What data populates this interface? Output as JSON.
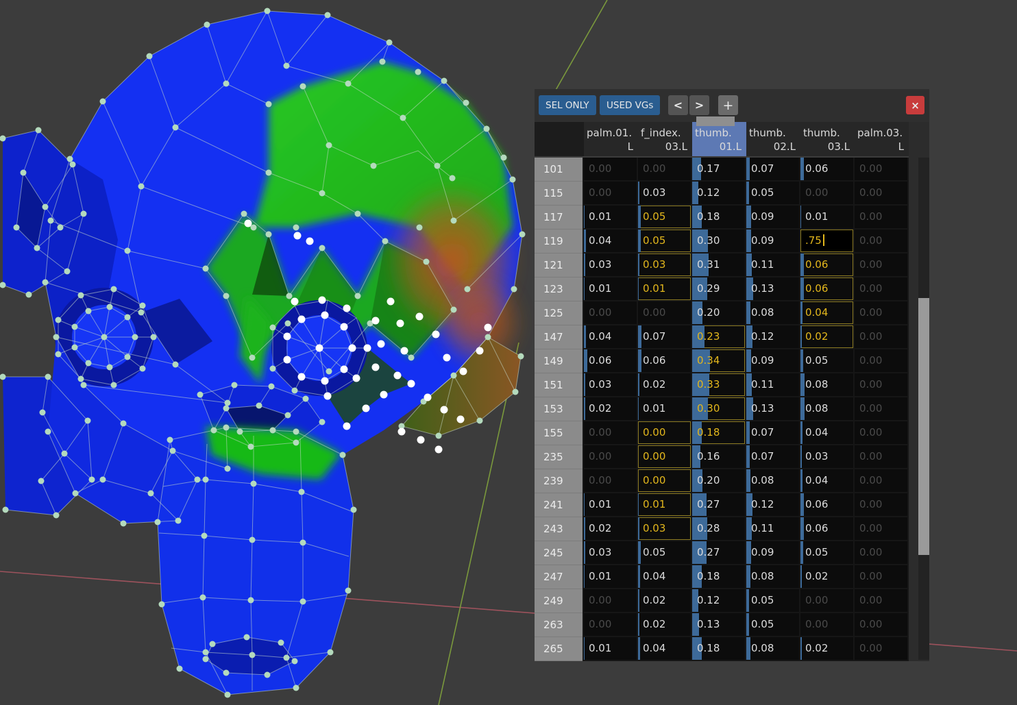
{
  "panel": {
    "toolbar": {
      "sel_only": "SEL ONLY",
      "used_vgs": "USED VGs",
      "prev": "<",
      "next": ">",
      "add": "+",
      "close": "×"
    },
    "columns": [
      {
        "l1": "palm.01.",
        "l2": "L",
        "selected": false
      },
      {
        "l1": "f_index.",
        "l2": "03.L",
        "selected": false
      },
      {
        "l1": "thumb.",
        "l2": "01.L",
        "selected": true
      },
      {
        "l1": "thumb.",
        "l2": "02.L",
        "selected": false
      },
      {
        "l1": "thumb.",
        "l2": "03.L",
        "selected": false
      },
      {
        "l1": "palm.03.",
        "l2": "L",
        "selected": false
      }
    ],
    "cell_states_legend": {
      "n": "normal",
      "d": "dim-zero",
      "y": "active-outline",
      "e": "editing"
    },
    "rows": [
      {
        "n": "101",
        "c": [
          [
            "0.00",
            "d"
          ],
          [
            "0.00",
            "d"
          ],
          [
            "0.17",
            "n"
          ],
          [
            "0.07",
            "n"
          ],
          [
            "0.06",
            "n"
          ],
          [
            "0.00",
            "d"
          ]
        ]
      },
      {
        "n": "115",
        "c": [
          [
            "0.00",
            "d"
          ],
          [
            "0.03",
            "n"
          ],
          [
            "0.12",
            "n"
          ],
          [
            "0.05",
            "n"
          ],
          [
            "0.00",
            "d"
          ],
          [
            "0.00",
            "d"
          ]
        ]
      },
      {
        "n": "117",
        "c": [
          [
            "0.01",
            "n"
          ],
          [
            "0.05",
            "y"
          ],
          [
            "0.18",
            "n"
          ],
          [
            "0.09",
            "n"
          ],
          [
            "0.01",
            "n"
          ],
          [
            "0.00",
            "d"
          ]
        ]
      },
      {
        "n": "119",
        "c": [
          [
            "0.04",
            "n"
          ],
          [
            "0.05",
            "y"
          ],
          [
            "0.30",
            "n"
          ],
          [
            "0.09",
            "n"
          ],
          [
            ".75",
            "e"
          ],
          [
            "0.00",
            "d"
          ]
        ]
      },
      {
        "n": "121",
        "c": [
          [
            "0.03",
            "n"
          ],
          [
            "0.03",
            "y"
          ],
          [
            "0.31",
            "n"
          ],
          [
            "0.11",
            "n"
          ],
          [
            "0.06",
            "y"
          ],
          [
            "0.00",
            "d"
          ]
        ]
      },
      {
        "n": "123",
        "c": [
          [
            "0.01",
            "n"
          ],
          [
            "0.01",
            "y"
          ],
          [
            "0.29",
            "n"
          ],
          [
            "0.13",
            "n"
          ],
          [
            "0.06",
            "y"
          ],
          [
            "0.00",
            "d"
          ]
        ]
      },
      {
        "n": "125",
        "c": [
          [
            "0.00",
            "d"
          ],
          [
            "0.00",
            "d"
          ],
          [
            "0.20",
            "n"
          ],
          [
            "0.08",
            "n"
          ],
          [
            "0.04",
            "y"
          ],
          [
            "0.00",
            "d"
          ]
        ]
      },
      {
        "n": "147",
        "c": [
          [
            "0.04",
            "n"
          ],
          [
            "0.07",
            "n"
          ],
          [
            "0.23",
            "y"
          ],
          [
            "0.12",
            "n"
          ],
          [
            "0.02",
            "y"
          ],
          [
            "0.00",
            "d"
          ]
        ]
      },
      {
        "n": "149",
        "c": [
          [
            "0.06",
            "n"
          ],
          [
            "0.06",
            "n"
          ],
          [
            "0.34",
            "y"
          ],
          [
            "0.09",
            "n"
          ],
          [
            "0.05",
            "n"
          ],
          [
            "0.00",
            "d"
          ]
        ]
      },
      {
        "n": "151",
        "c": [
          [
            "0.03",
            "n"
          ],
          [
            "0.02",
            "n"
          ],
          [
            "0.33",
            "y"
          ],
          [
            "0.11",
            "n"
          ],
          [
            "0.08",
            "n"
          ],
          [
            "0.00",
            "d"
          ]
        ]
      },
      {
        "n": "153",
        "c": [
          [
            "0.02",
            "n"
          ],
          [
            "0.01",
            "n"
          ],
          [
            "0.30",
            "y"
          ],
          [
            "0.13",
            "n"
          ],
          [
            "0.08",
            "n"
          ],
          [
            "0.00",
            "d"
          ]
        ]
      },
      {
        "n": "155",
        "c": [
          [
            "0.00",
            "d"
          ],
          [
            "0.00",
            "y"
          ],
          [
            "0.18",
            "y"
          ],
          [
            "0.07",
            "n"
          ],
          [
            "0.04",
            "n"
          ],
          [
            "0.00",
            "d"
          ]
        ]
      },
      {
        "n": "235",
        "c": [
          [
            "0.00",
            "d"
          ],
          [
            "0.00",
            "y"
          ],
          [
            "0.16",
            "n"
          ],
          [
            "0.07",
            "n"
          ],
          [
            "0.03",
            "n"
          ],
          [
            "0.00",
            "d"
          ]
        ]
      },
      {
        "n": "239",
        "c": [
          [
            "0.00",
            "d"
          ],
          [
            "0.00",
            "y"
          ],
          [
            "0.20",
            "n"
          ],
          [
            "0.08",
            "n"
          ],
          [
            "0.04",
            "n"
          ],
          [
            "0.00",
            "d"
          ]
        ]
      },
      {
        "n": "241",
        "c": [
          [
            "0.01",
            "n"
          ],
          [
            "0.01",
            "y"
          ],
          [
            "0.27",
            "n"
          ],
          [
            "0.12",
            "n"
          ],
          [
            "0.06",
            "n"
          ],
          [
            "0.00",
            "d"
          ]
        ]
      },
      {
        "n": "243",
        "c": [
          [
            "0.02",
            "n"
          ],
          [
            "0.03",
            "y"
          ],
          [
            "0.28",
            "n"
          ],
          [
            "0.11",
            "n"
          ],
          [
            "0.06",
            "n"
          ],
          [
            "0.00",
            "d"
          ]
        ]
      },
      {
        "n": "245",
        "c": [
          [
            "0.03",
            "n"
          ],
          [
            "0.05",
            "n"
          ],
          [
            "0.27",
            "n"
          ],
          [
            "0.09",
            "n"
          ],
          [
            "0.05",
            "n"
          ],
          [
            "0.00",
            "d"
          ]
        ]
      },
      {
        "n": "247",
        "c": [
          [
            "0.01",
            "n"
          ],
          [
            "0.04",
            "n"
          ],
          [
            "0.18",
            "n"
          ],
          [
            "0.08",
            "n"
          ],
          [
            "0.02",
            "n"
          ],
          [
            "0.00",
            "d"
          ]
        ]
      },
      {
        "n": "249",
        "c": [
          [
            "0.00",
            "d"
          ],
          [
            "0.02",
            "n"
          ],
          [
            "0.12",
            "n"
          ],
          [
            "0.05",
            "n"
          ],
          [
            "0.00",
            "d"
          ],
          [
            "0.00",
            "d"
          ]
        ]
      },
      {
        "n": "263",
        "c": [
          [
            "0.00",
            "d"
          ],
          [
            "0.02",
            "n"
          ],
          [
            "0.13",
            "n"
          ],
          [
            "0.05",
            "n"
          ],
          [
            "0.00",
            "d"
          ],
          [
            "0.00",
            "d"
          ]
        ]
      },
      {
        "n": "265",
        "c": [
          [
            "0.01",
            "n"
          ],
          [
            "0.04",
            "n"
          ],
          [
            "0.18",
            "n"
          ],
          [
            "0.08",
            "n"
          ],
          [
            "0.02",
            "n"
          ],
          [
            "0.00",
            "d"
          ]
        ]
      }
    ]
  },
  "colors": {
    "viewport_bg": "#3c3c3c",
    "button_blue": "#2a5d90",
    "selected_header_blue": "#5d79b4",
    "bar_blue": "#3d6a99",
    "cell_bg": "#0c0c0c",
    "row_index_bg": "#8b8b8b",
    "normal_text": "#dcdcdc",
    "dim_text": "#4a4a4a",
    "active_yellow": "#e3b71c",
    "active_outline": "#8c7a22",
    "close_red": "#c83c3c",
    "axis_red": "#a85560",
    "axis_green": "#7e9e3c",
    "vertex_unselected": "#b4dabd",
    "vertex_selected": "#ffffff"
  }
}
